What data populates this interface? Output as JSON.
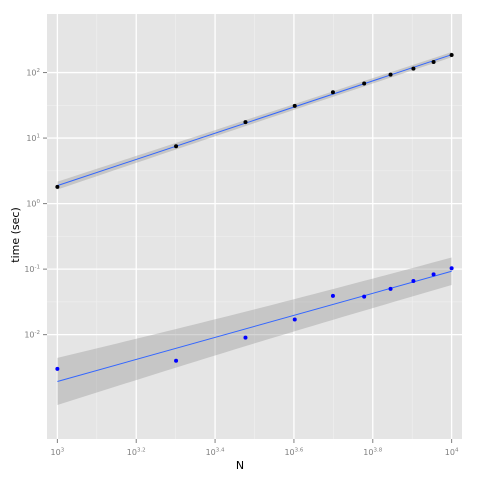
{
  "chart_data": {
    "type": "scatter",
    "title": "",
    "xlabel": "N",
    "ylabel": "time (sec)",
    "x_scale": "log10",
    "y_scale": "log10",
    "xlim": [
      1000,
      10000
    ],
    "ylim": [
      0.0004,
      500
    ],
    "x_ticks": [
      {
        "base": "10",
        "exp": "3",
        "value": 1000
      },
      {
        "base": "10",
        "exp": "3.2",
        "value": 1584.9
      },
      {
        "base": "10",
        "exp": "3.4",
        "value": 2511.9
      },
      {
        "base": "10",
        "exp": "3.6",
        "value": 3981.1
      },
      {
        "base": "10",
        "exp": "3.8",
        "value": 6309.6
      },
      {
        "base": "10",
        "exp": "4",
        "value": 10000
      }
    ],
    "y_ticks": [
      {
        "base": "10",
        "exp": "-2",
        "value": 0.01
      },
      {
        "base": "10",
        "exp": "-1",
        "value": 0.1
      },
      {
        "base": "10",
        "exp": "0",
        "value": 1
      },
      {
        "base": "10",
        "exp": "1",
        "value": 10
      },
      {
        "base": "10",
        "exp": "2",
        "value": 100
      }
    ],
    "grid": true,
    "series": [
      {
        "color": "#000000",
        "x": [
          1000,
          2000,
          3000,
          4000,
          5000,
          6000,
          7000,
          8000,
          9000,
          10000
        ],
        "y": [
          1.8,
          7.5,
          17.5,
          31,
          50,
          68,
          93,
          115,
          145,
          185
        ],
        "fit": {
          "method": "lm",
          "color": "#3366FF",
          "band": [
            0.06,
            0.04
          ]
        }
      },
      {
        "color": "#0000FF",
        "x": [
          1000,
          2000,
          3000,
          4000,
          5000,
          6000,
          7000,
          8000,
          9000,
          10000
        ],
        "y": [
          0.003,
          0.004,
          0.009,
          0.017,
          0.039,
          0.038,
          0.05,
          0.066,
          0.083,
          0.103
        ],
        "fit": {
          "method": "lm",
          "color": "#3366FF",
          "band": [
            0.36,
            0.21
          ]
        }
      }
    ]
  }
}
